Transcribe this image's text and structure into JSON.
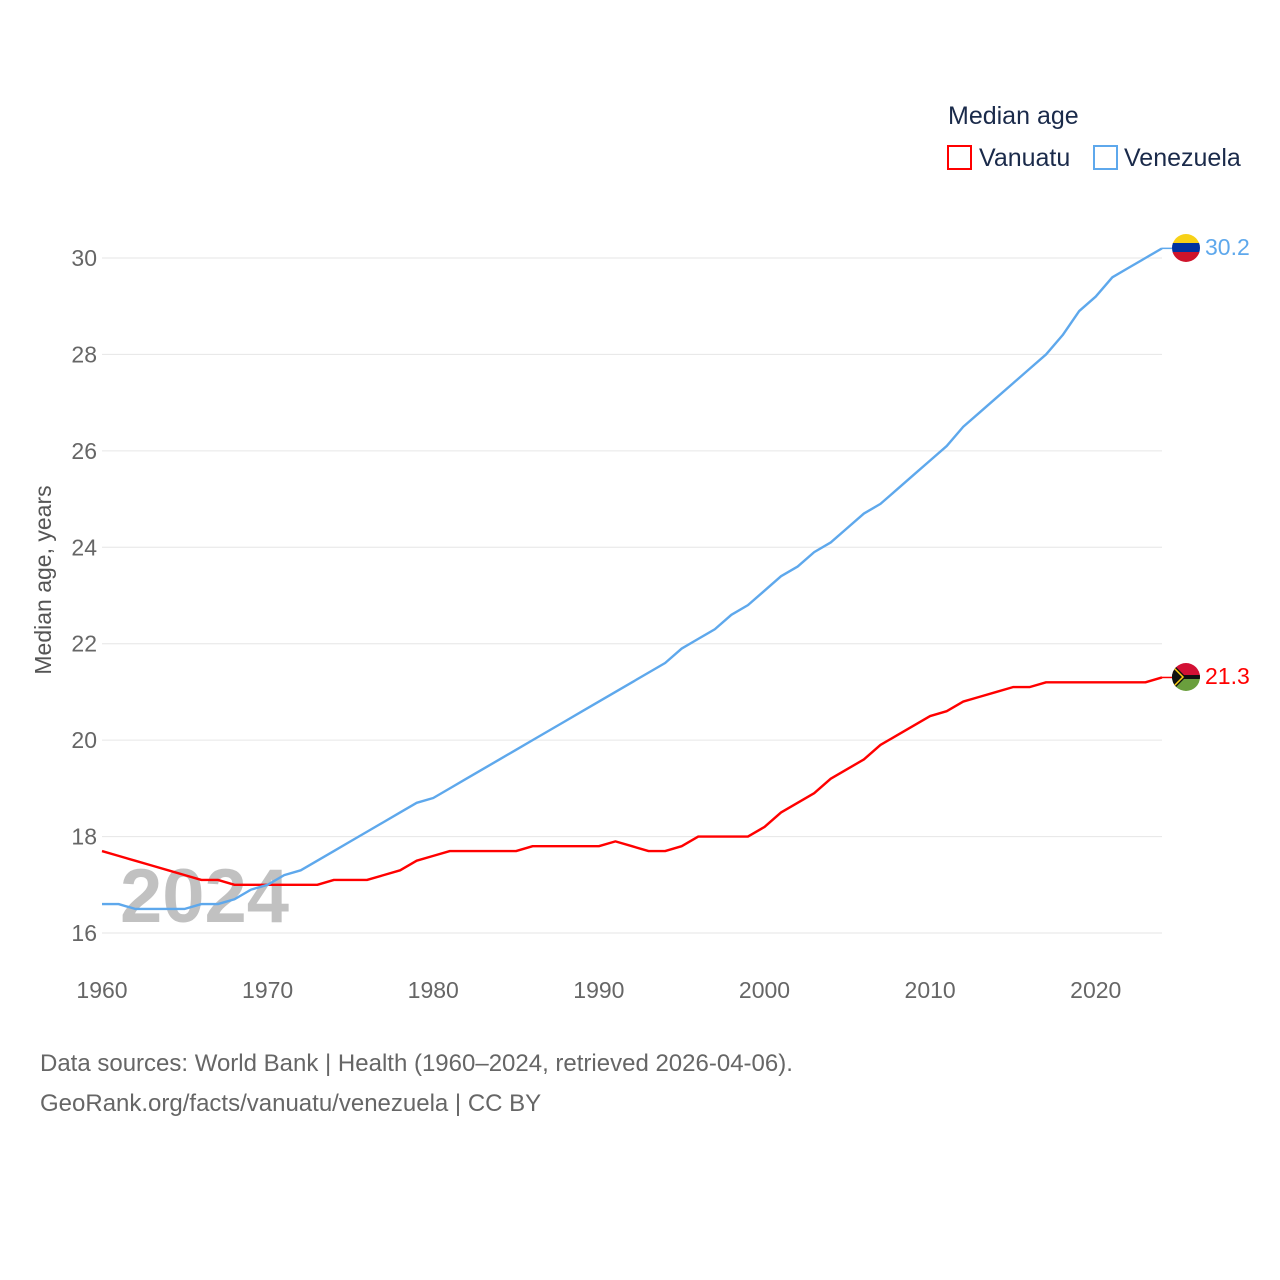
{
  "chart_data": {
    "type": "line",
    "title": "",
    "xlabel": "",
    "ylabel": "Median age, years",
    "legend_title": "Median age",
    "legend_position": "top-right",
    "watermark_year": "2024",
    "xlim": [
      1960,
      2024
    ],
    "ylim": [
      16,
      30.2
    ],
    "x_ticks": [
      1960,
      1970,
      1980,
      1990,
      2000,
      2010,
      2020
    ],
    "y_ticks": [
      16,
      18,
      20,
      22,
      24,
      26,
      28,
      30
    ],
    "grid": true,
    "x": [
      1960,
      1961,
      1962,
      1963,
      1964,
      1965,
      1966,
      1967,
      1968,
      1969,
      1970,
      1971,
      1972,
      1973,
      1974,
      1975,
      1976,
      1977,
      1978,
      1979,
      1980,
      1981,
      1982,
      1983,
      1984,
      1985,
      1986,
      1987,
      1988,
      1989,
      1990,
      1991,
      1992,
      1993,
      1994,
      1995,
      1996,
      1997,
      1998,
      1999,
      2000,
      2001,
      2002,
      2003,
      2004,
      2005,
      2006,
      2007,
      2008,
      2009,
      2010,
      2011,
      2012,
      2013,
      2014,
      2015,
      2016,
      2017,
      2018,
      2019,
      2020,
      2021,
      2022,
      2023,
      2024
    ],
    "series": [
      {
        "name": "Vanuatu",
        "color": "#ff0000",
        "end_label": "21.3",
        "values": [
          17.7,
          17.6,
          17.5,
          17.4,
          17.3,
          17.2,
          17.1,
          17.1,
          17.0,
          17.0,
          17.0,
          17.0,
          17.0,
          17.0,
          17.1,
          17.1,
          17.1,
          17.2,
          17.3,
          17.5,
          17.6,
          17.7,
          17.7,
          17.7,
          17.7,
          17.7,
          17.8,
          17.8,
          17.8,
          17.8,
          17.8,
          17.9,
          17.8,
          17.7,
          17.7,
          17.8,
          18.0,
          18.0,
          18.0,
          18.0,
          18.2,
          18.5,
          18.7,
          18.9,
          19.2,
          19.4,
          19.6,
          19.9,
          20.1,
          20.3,
          20.5,
          20.6,
          20.8,
          20.9,
          21.0,
          21.1,
          21.1,
          21.2,
          21.2,
          21.2,
          21.2,
          21.2,
          21.2,
          21.2,
          21.3
        ]
      },
      {
        "name": "Venezuela",
        "color": "#5ea8ec",
        "end_label": "30.2",
        "values": [
          16.6,
          16.6,
          16.5,
          16.5,
          16.5,
          16.5,
          16.6,
          16.6,
          16.7,
          16.9,
          17.0,
          17.2,
          17.3,
          17.5,
          17.7,
          17.9,
          18.1,
          18.3,
          18.5,
          18.7,
          18.8,
          19.0,
          19.2,
          19.4,
          19.6,
          19.8,
          20.0,
          20.2,
          20.4,
          20.6,
          20.8,
          21.0,
          21.2,
          21.4,
          21.6,
          21.9,
          22.1,
          22.3,
          22.6,
          22.8,
          23.1,
          23.4,
          23.6,
          23.9,
          24.1,
          24.4,
          24.7,
          24.9,
          25.2,
          25.5,
          25.8,
          26.1,
          26.5,
          26.8,
          27.1,
          27.4,
          27.7,
          28.0,
          28.4,
          28.9,
          29.2,
          29.6,
          29.8,
          30.0,
          30.2
        ]
      }
    ]
  },
  "source": {
    "line1": "Data sources: World Bank | Health (1960–2024, retrieved 2026-04-06).",
    "line2": "GeoRank.org/facts/vanuatu/venezuela | CC BY"
  }
}
